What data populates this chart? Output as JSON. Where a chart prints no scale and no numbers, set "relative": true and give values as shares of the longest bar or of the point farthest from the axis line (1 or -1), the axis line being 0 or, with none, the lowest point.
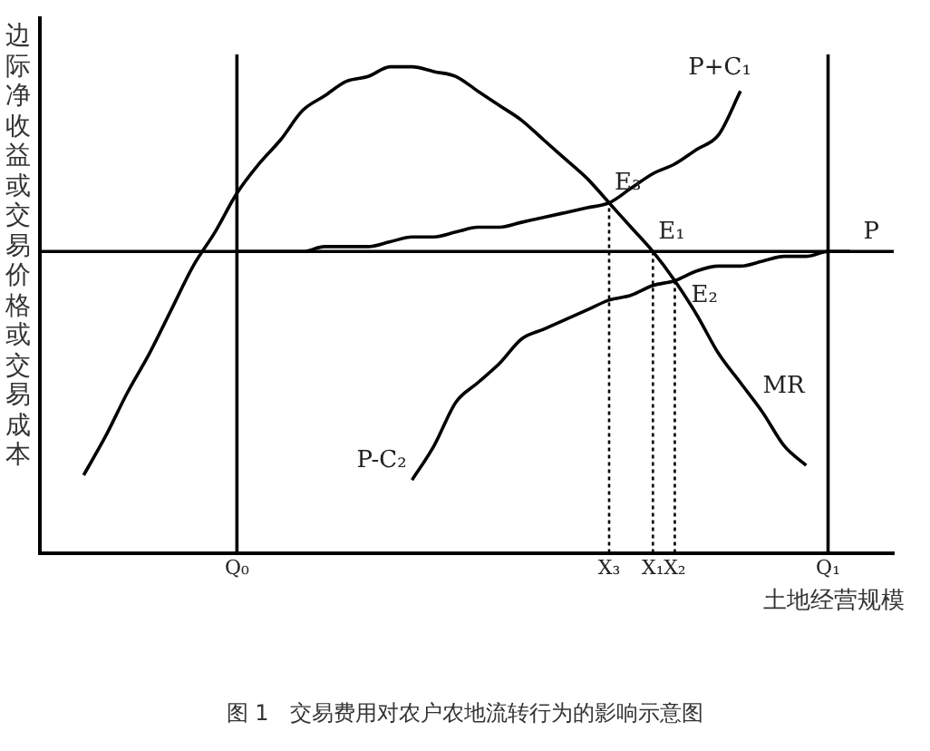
{
  "chart_data": {
    "type": "line",
    "relative": true,
    "ylabel": "边际净收益或交易价格或交易成本",
    "xlabel": "土地经营规模",
    "categories": [
      null,
      null,
      null,
      null,
      null,
      null,
      null,
      null,
      null,
      "Q₀",
      null,
      null,
      null,
      null,
      null,
      null,
      null,
      null,
      null,
      null,
      null,
      null,
      null,
      null,
      null,
      null,
      "X₃",
      null,
      "X₁",
      "X₂",
      null,
      null,
      null,
      null,
      null,
      null,
      "Q₁",
      null,
      null,
      null
    ],
    "annotations": [
      {
        "text": "E₃",
        "x": "X₃",
        "y": 0.72
      },
      {
        "text": "E₁",
        "x": "X₁",
        "y": 0.62
      },
      {
        "text": "E₂",
        "x": "X₂",
        "y": 0.56
      },
      "图 1　交易费用对农户农地流转行为的影响示意图"
    ],
    "series": [
      {
        "name": "MR",
        "color": "#000000",
        "values": [
          null,
          null,
          0.16,
          0.24,
          0.33,
          0.41,
          0.5,
          0.59,
          0.66,
          0.74,
          0.8,
          0.85,
          0.91,
          0.94,
          0.97,
          0.98,
          1.0,
          1.0,
          0.99,
          0.98,
          0.95,
          0.92,
          0.89,
          0.85,
          0.81,
          0.77,
          0.72,
          0.67,
          0.62,
          0.56,
          0.49,
          0.41,
          0.35,
          0.29,
          0.22,
          0.18,
          null,
          null,
          null,
          null
        ]
      },
      {
        "name": "P+C₁",
        "color": "#000000",
        "values": [
          null,
          null,
          null,
          null,
          null,
          null,
          null,
          null,
          null,
          0.62,
          0.62,
          0.62,
          0.62,
          0.63,
          0.63,
          0.63,
          0.64,
          0.65,
          0.65,
          0.66,
          0.67,
          0.67,
          0.68,
          0.69,
          0.7,
          0.71,
          0.72,
          0.75,
          0.78,
          0.8,
          0.83,
          0.86,
          0.95,
          null,
          null,
          null,
          null,
          null,
          null,
          null
        ]
      },
      {
        "name": "P-C₂",
        "color": "#000000",
        "values": [
          null,
          null,
          null,
          null,
          null,
          null,
          null,
          null,
          null,
          null,
          null,
          null,
          null,
          null,
          null,
          null,
          null,
          0.15,
          0.22,
          0.31,
          0.35,
          0.39,
          0.44,
          0.46,
          0.48,
          0.5,
          0.52,
          0.53,
          0.55,
          0.56,
          0.58,
          0.59,
          0.59,
          0.6,
          0.61,
          0.61,
          0.62,
          0.62,
          null,
          null
        ]
      }
    ],
    "ref_lines": [
      {
        "axis": "y",
        "value": 0.62,
        "label": "P"
      },
      {
        "axis": "x",
        "value": "Q₀"
      },
      {
        "axis": "x",
        "value": "Q₁"
      },
      {
        "axis": "x",
        "value": "X₃",
        "line_style": "dotted"
      },
      {
        "axis": "x",
        "value": "X₁",
        "line_style": "dotted"
      },
      {
        "axis": "x",
        "value": "X₂",
        "line_style": "dotted"
      }
    ],
    "tick_labels": "x",
    "legend": false,
    "marker": "none",
    "line_style": "solid"
  }
}
